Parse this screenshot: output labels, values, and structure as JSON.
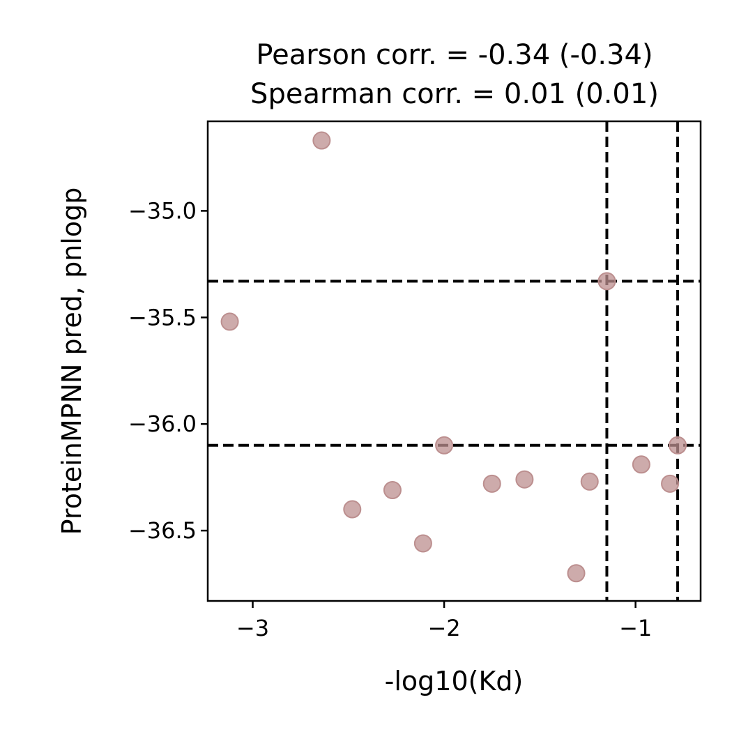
{
  "chart_data": {
    "type": "scatter",
    "title": [
      "Pearson corr. = -0.34 (-0.34)",
      "Spearman corr. = 0.01 (0.01)"
    ],
    "xlabel": "-log10(Kd)",
    "ylabel": "ProteinMPNN pred, pnlogp",
    "xlim": [
      -3.235,
      -0.66
    ],
    "ylim": [
      -36.83,
      -34.58
    ],
    "xticks": [
      -3,
      -2,
      -1
    ],
    "xtick_labels": [
      "−3",
      "−2",
      "−1"
    ],
    "yticks": [
      -35.0,
      -35.5,
      -36.0,
      -36.5
    ],
    "ytick_labels": [
      "−35.0",
      "−35.5",
      "−36.0",
      "−36.5"
    ],
    "grid": false,
    "marker_color": "#bc8f8f",
    "reference_lines": {
      "x": [
        -1.15,
        -0.78
      ],
      "y": [
        -35.33,
        -36.1
      ],
      "color": "#000000",
      "style": "dashed"
    },
    "points": [
      {
        "x": -2.64,
        "y": -34.67
      },
      {
        "x": -3.12,
        "y": -35.52
      },
      {
        "x": -1.15,
        "y": -35.33
      },
      {
        "x": -2.0,
        "y": -36.1
      },
      {
        "x": -0.78,
        "y": -36.1
      },
      {
        "x": -0.97,
        "y": -36.19
      },
      {
        "x": -0.82,
        "y": -36.28
      },
      {
        "x": -1.24,
        "y": -36.27
      },
      {
        "x": -1.58,
        "y": -36.26
      },
      {
        "x": -1.75,
        "y": -36.28
      },
      {
        "x": -2.27,
        "y": -36.31
      },
      {
        "x": -2.48,
        "y": -36.4
      },
      {
        "x": -2.11,
        "y": -36.56
      },
      {
        "x": -1.31,
        "y": -36.7
      }
    ]
  }
}
